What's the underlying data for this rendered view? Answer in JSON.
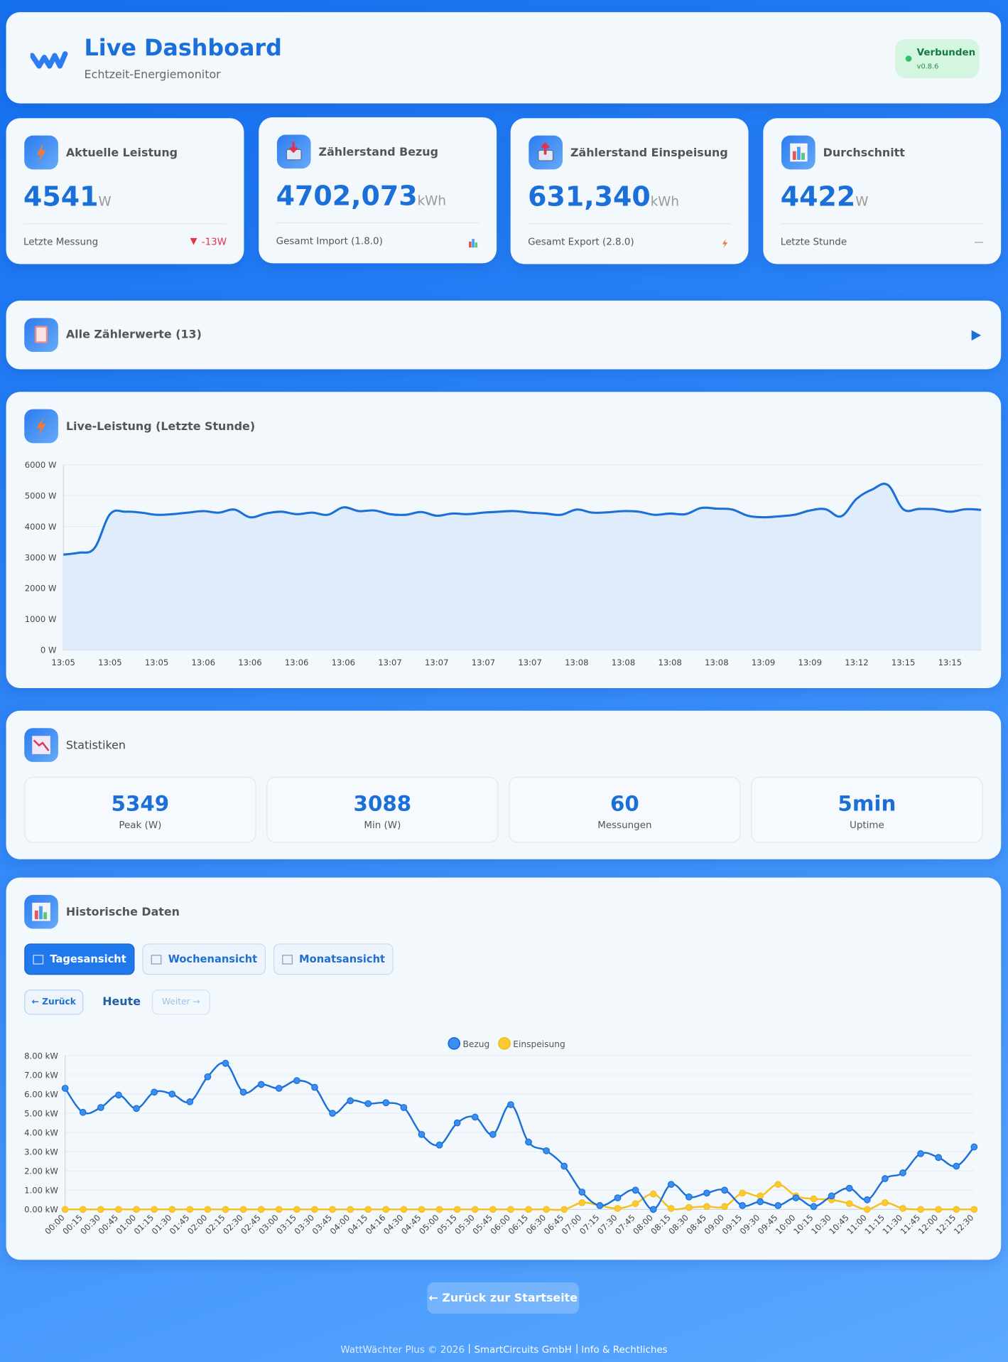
{
  "header": {
    "title": "Live Dashboard",
    "subtitle": "Echtzeit-Energiemonitor",
    "status": "Verbunden",
    "version": "v0.8.6"
  },
  "cards": [
    {
      "title": "Aktuelle Leistung",
      "value": 4541,
      "unit": "W",
      "footer": "Letzte Messung",
      "trend": "-13W"
    },
    {
      "title": "Zählerstand Bezug",
      "value": "4702,073",
      "unit": "kWh",
      "footer": "Gesamt Import (1.8.0)"
    },
    {
      "title": "Zählerstand Einspeisung",
      "value": "631,340",
      "unit": "kWh",
      "footer": "Gesamt Export (2.8.0)"
    },
    {
      "title": "Durchschnitt",
      "value": 4422,
      "unit": "W",
      "footer": "Letzte Stunde",
      "trend": "—"
    }
  ],
  "meters": {
    "title": "Alle Zählerwerte (13)"
  },
  "statistics": {
    "title": "Statistiken",
    "items": [
      {
        "value": 5349,
        "label": "Peak (W)"
      },
      {
        "value": 3088,
        "label": "Min (W)"
      },
      {
        "value": 60,
        "label": "Messungen"
      },
      {
        "value": "5min",
        "label": "Uptime"
      }
    ]
  },
  "history": {
    "title": "Historische Daten",
    "tabs": [
      "Tagesansicht",
      "Wochenansicht",
      "Monatsansicht"
    ],
    "prev": "← Zurück",
    "current": "Heute",
    "next": "Weiter →"
  },
  "footer": {
    "back_button": "← Zurück zur Startseite",
    "copyright": "WattWächter Plus © 2026",
    "company": "SmartCircuits GmbH",
    "legal": "Info & Rechtliches"
  },
  "chart_data": [
    {
      "type": "area",
      "title": "Live-Leistung (Letzte Stunde)",
      "color": "#1a6fd8",
      "fill": "#dbeafc",
      "grid": true,
      "categories": [
        "13:05",
        null,
        null,
        "13:05",
        null,
        null,
        "13:05",
        null,
        null,
        "13:06",
        null,
        null,
        "13:06",
        null,
        null,
        "13:06",
        null,
        null,
        "13:06",
        null,
        null,
        "13:07",
        null,
        null,
        "13:07",
        null,
        null,
        "13:07",
        null,
        null,
        "13:07",
        null,
        null,
        "13:08",
        null,
        null,
        "13:08",
        null,
        null,
        "13:08",
        null,
        null,
        "13:08",
        null,
        null,
        "13:09",
        null,
        null,
        "13:09",
        null,
        null,
        "13:12",
        null,
        null,
        "13:15",
        null,
        null,
        "13:15",
        null,
        null
      ],
      "values": [
        3088,
        3150,
        3300,
        4400,
        4480,
        4450,
        4380,
        4400,
        4450,
        4500,
        4450,
        4550,
        4300,
        4420,
        4480,
        4400,
        4450,
        4380,
        4620,
        4500,
        4520,
        4400,
        4380,
        4470,
        4350,
        4420,
        4400,
        4450,
        4480,
        4500,
        4450,
        4420,
        4380,
        4550,
        4450,
        4460,
        4500,
        4480,
        4380,
        4420,
        4400,
        4600,
        4580,
        4550,
        4350,
        4300,
        4330,
        4380,
        4520,
        4560,
        4330,
        4900,
        5200,
        5349,
        4560,
        4570,
        4560,
        4480,
        4560,
        4540
      ],
      "ylim": [
        0,
        6000
      ],
      "yticks": [
        {
          "value": 0,
          "label": "0 W"
        },
        {
          "value": 1000,
          "label": "1000 W"
        },
        {
          "value": 2000,
          "label": "2000 W"
        },
        {
          "value": 3000,
          "label": "3000 W"
        },
        {
          "value": 4000,
          "label": "4000 W"
        },
        {
          "value": 5000,
          "label": "5000 W"
        },
        {
          "value": 6000,
          "label": "6000 W"
        }
      ]
    },
    {
      "type": "line",
      "grid": true,
      "legend": "top",
      "categories": [
        "00:00",
        "00:15",
        "00:30",
        "00:45",
        "01:00",
        "01:15",
        "01:30",
        "01:45",
        "02:00",
        "02:15",
        "02:30",
        "02:45",
        "03:00",
        "03:15",
        "03:30",
        "03:45",
        "04:00",
        "04:15",
        "04:16",
        "04:30",
        "04:45",
        "05:00",
        "05:15",
        "05:30",
        "05:45",
        "06:00",
        "06:15",
        "06:30",
        "06:45",
        "07:00",
        "07:15",
        "07:30",
        "07:45",
        "08:00",
        "08:15",
        "08:30",
        "08:45",
        "09:00",
        "09:15",
        "09:30",
        "09:45",
        "10:00",
        "10:15",
        "10:30",
        "10:45",
        "11:00",
        "11:15",
        "11:30",
        "11:45",
        "12:00",
        "12:15",
        "12:30"
      ],
      "series": [
        {
          "name": "Bezug",
          "color": "#1a6fd8",
          "marker": "#3b8ff0",
          "values": [
            6.3,
            5.05,
            5.3,
            5.95,
            5.25,
            6.1,
            6.0,
            5.6,
            6.9,
            7.6,
            6.1,
            6.5,
            6.3,
            6.7,
            6.35,
            5.0,
            5.65,
            5.5,
            5.55,
            5.3,
            3.9,
            3.35,
            4.5,
            4.8,
            3.9,
            5.45,
            3.5,
            3.05,
            2.25,
            0.9,
            0.2,
            0.6,
            1.0,
            0.0,
            1.3,
            0.65,
            0.85,
            1.0,
            0.2,
            0.4,
            0.2,
            0.6,
            0.15,
            0.7,
            1.1,
            0.5,
            1.6,
            1.9,
            2.9,
            2.7,
            2.25,
            3.25
          ]
        },
        {
          "name": "Einspeisung",
          "color": "#f5c01a",
          "marker": "#fbc933",
          "values": [
            0,
            0,
            0,
            0,
            0,
            0,
            0,
            0,
            0,
            0,
            0,
            0,
            0,
            0,
            0,
            0,
            0,
            0,
            0,
            0,
            0,
            0,
            0,
            0,
            0,
            0,
            0,
            0,
            0,
            0.35,
            0.2,
            0.05,
            0.3,
            0.8,
            0.05,
            0.1,
            0.15,
            0.15,
            0.85,
            0.7,
            1.3,
            0.7,
            0.55,
            0.5,
            0.3,
            0,
            0.35,
            0.05,
            0,
            0,
            0,
            0
          ]
        }
      ],
      "ylim": [
        0,
        8
      ],
      "yticks": [
        {
          "value": 0,
          "label": "0.00 kW"
        },
        {
          "value": 1,
          "label": "1.00 kW"
        },
        {
          "value": 2,
          "label": "2.00 kW"
        },
        {
          "value": 3,
          "label": "3.00 kW"
        },
        {
          "value": 4,
          "label": "4.00 kW"
        },
        {
          "value": 5,
          "label": "5.00 kW"
        },
        {
          "value": 6,
          "label": "6.00 kW"
        },
        {
          "value": 7,
          "label": "7.00 kW"
        },
        {
          "value": 8,
          "label": "8.00 kW"
        }
      ]
    }
  ]
}
